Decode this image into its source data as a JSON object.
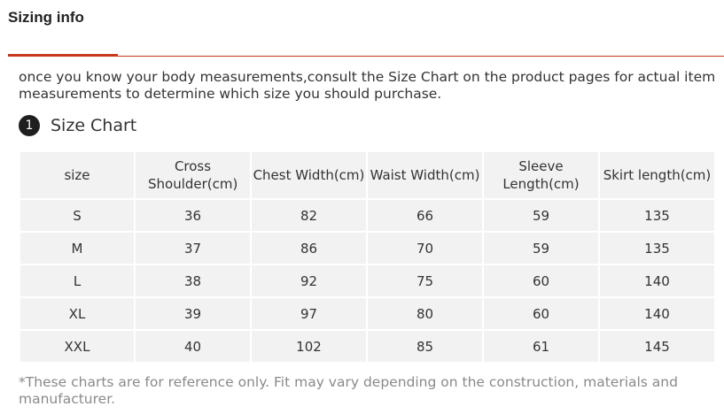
{
  "header": {
    "title": "Sizing info"
  },
  "intro_text": "once you know your body measurements,consult the Size Chart on the product pages for actual item measurements to determine which size you should purchase.",
  "section": {
    "step": "1",
    "title": "Size Chart"
  },
  "table": {
    "headers": [
      "size",
      "Cross Shoulder(cm)",
      "Chest Width(cm)",
      "Waist Width(cm)",
      "Sleeve Length(cm)",
      "Skirt length(cm)"
    ],
    "rows": [
      [
        "S",
        "36",
        "82",
        "66",
        "59",
        "135"
      ],
      [
        "M",
        "37",
        "86",
        "70",
        "59",
        "135"
      ],
      [
        "L",
        "38",
        "92",
        "75",
        "60",
        "140"
      ],
      [
        "XL",
        "39",
        "97",
        "80",
        "60",
        "140"
      ],
      [
        "XXL",
        "40",
        "102",
        "85",
        "61",
        "145"
      ]
    ]
  },
  "note": "*These charts are for reference only. Fit may vary depending on the construction, materials and manufacturer.",
  "colors": {
    "accent": "#c8381a",
    "cell_background": "#f2f2f2",
    "badge": "#1f1f1f"
  }
}
